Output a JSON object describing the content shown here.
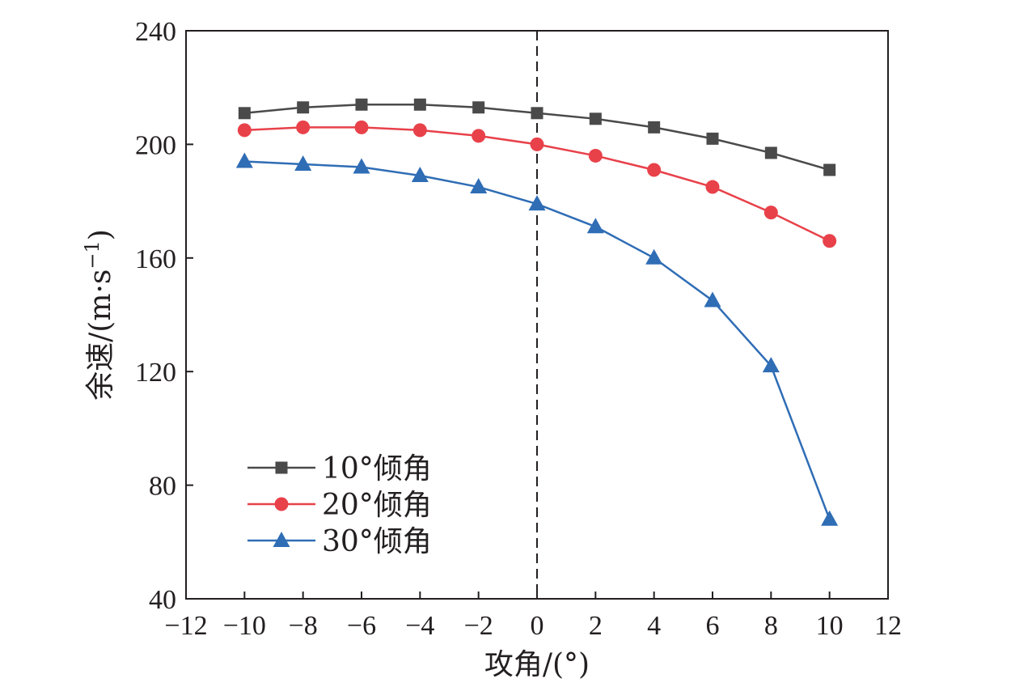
{
  "chart_data": {
    "type": "line",
    "xlabel": "攻角/(°)",
    "ylabel_main": "余速/(m·s",
    "ylabel_sup": "−1",
    "ylabel_close": ")",
    "xlim": [
      -12,
      12
    ],
    "ylim": [
      40,
      240
    ],
    "xticks": [
      -12,
      -10,
      -8,
      -6,
      -4,
      -2,
      0,
      2,
      4,
      6,
      8,
      10,
      12
    ],
    "xtick_labels": [
      "−12",
      "−10",
      "−8",
      "−6",
      "−4",
      "−2",
      "0",
      "2",
      "4",
      "6",
      "8",
      "10",
      "12"
    ],
    "yticks": [
      40,
      80,
      120,
      160,
      200,
      240
    ],
    "ytick_labels": [
      "40",
      "80",
      "120",
      "160",
      "200",
      "240"
    ],
    "reference_line_x": 0,
    "legend_position": "lower-left",
    "x": [
      -10,
      -8,
      -6,
      -4,
      -2,
      0,
      2,
      4,
      6,
      8,
      10
    ],
    "series": [
      {
        "name": "10°倾角",
        "color": "#4a4a4a",
        "marker": "square",
        "values": [
          211,
          213,
          214,
          214,
          213,
          211,
          209,
          206,
          202,
          197,
          191
        ]
      },
      {
        "name": "20°倾角",
        "color": "#e8414a",
        "marker": "circle",
        "values": [
          205,
          206,
          206,
          205,
          203,
          200,
          196,
          191,
          185,
          176,
          166
        ]
      },
      {
        "name": "30°倾角",
        "color": "#2f6db5",
        "marker": "triangle",
        "values": [
          194,
          193,
          192,
          189,
          185,
          179,
          171,
          160,
          145,
          122,
          68
        ]
      }
    ]
  }
}
